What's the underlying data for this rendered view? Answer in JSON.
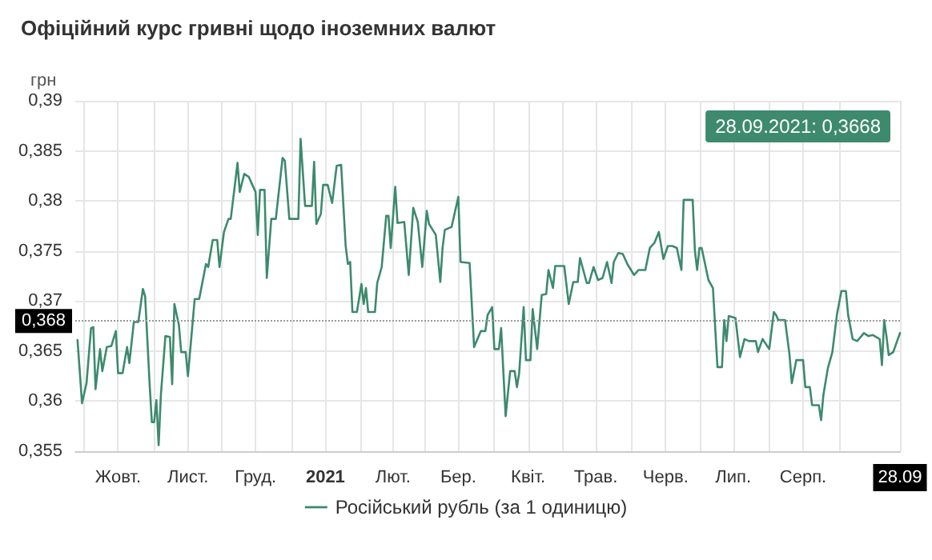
{
  "chart_data": {
    "type": "line",
    "title": "Офіційний курс гривні щодо іноземних валют",
    "ylabel": "грн",
    "x": [
      "2020-09-28",
      "2020-09-30",
      "2020-10-02",
      "2020-10-04",
      "2020-10-05",
      "2020-10-06",
      "2020-10-08",
      "2020-10-09",
      "2020-10-11",
      "2020-10-13",
      "2020-10-15",
      "2020-10-16",
      "2020-10-18",
      "2020-10-20",
      "2020-10-21",
      "2020-10-23",
      "2020-10-25",
      "2020-10-27",
      "2020-10-28",
      "2020-10-30",
      "2020-10-31",
      "2020-11-01",
      "2020-11-02",
      "2020-11-03",
      "2020-11-04",
      "2020-11-06",
      "2020-11-08",
      "2020-11-09",
      "2020-11-10",
      "2020-11-12",
      "2020-11-13",
      "2020-11-15",
      "2020-11-16",
      "2020-11-19",
      "2020-11-21",
      "2020-11-24",
      "2020-11-25",
      "2020-11-27",
      "2020-11-29",
      "2020-11-30",
      "2020-12-02",
      "2020-12-04",
      "2020-12-05",
      "2020-12-07",
      "2020-12-08",
      "2020-12-09",
      "2020-12-11",
      "2020-12-13",
      "2020-12-16",
      "2020-12-17",
      "2020-12-18",
      "2020-12-20",
      "2020-12-21",
      "2020-12-23",
      "2020-12-25",
      "2020-12-28",
      "2020-12-29",
      "2020-12-31",
      "2021-01-04",
      "2021-01-05",
      "2021-01-07",
      "2021-01-10",
      "2021-01-11",
      "2021-01-12",
      "2021-01-14",
      "2021-01-15",
      "2021-01-17",
      "2021-01-19",
      "2021-01-21",
      "2021-01-23",
      "2021-01-25",
      "2021-01-26",
      "2021-01-27",
      "2021-01-28",
      "2021-01-30",
      "2021-02-01",
      "2021-02-02",
      "2021-02-03",
      "2021-02-04",
      "2021-02-07",
      "2021-02-08",
      "2021-02-10",
      "2021-02-12",
      "2021-02-13",
      "2021-02-14",
      "2021-02-16",
      "2021-02-17",
      "2021-02-20",
      "2021-02-22",
      "2021-02-24",
      "2021-02-26",
      "2021-02-28",
      "2021-03-02",
      "2021-03-03",
      "2021-03-06",
      "2021-03-08",
      "2021-03-09",
      "2021-03-10",
      "2021-03-13",
      "2021-03-16",
      "2021-03-17",
      "2021-03-21",
      "2021-03-23",
      "2021-03-26",
      "2021-03-28",
      "2021-03-29",
      "2021-03-31",
      "2021-04-01",
      "2021-04-03",
      "2021-04-04",
      "2021-04-06",
      "2021-04-08",
      "2021-04-10",
      "2021-04-11",
      "2021-04-12",
      "2021-04-14",
      "2021-04-15",
      "2021-04-17",
      "2021-04-18",
      "2021-04-20",
      "2021-04-22",
      "2021-04-24",
      "2021-04-25",
      "2021-04-27",
      "2021-04-28",
      "2021-05-02",
      "2021-05-04",
      "2021-05-06",
      "2021-05-08",
      "2021-05-09",
      "2021-05-12",
      "2021-05-13",
      "2021-05-15",
      "2021-05-17",
      "2021-05-19",
      "2021-05-21",
      "2021-05-23",
      "2021-05-24",
      "2021-05-26",
      "2021-05-28",
      "2021-05-30",
      "2021-06-02",
      "2021-06-04",
      "2021-06-07",
      "2021-06-09",
      "2021-06-11",
      "2021-06-13",
      "2021-06-15",
      "2021-06-17",
      "2021-06-19",
      "2021-06-21",
      "2021-06-23",
      "2021-06-24",
      "2021-06-28",
      "2021-06-29",
      "2021-06-30",
      "2021-07-01",
      "2021-07-02",
      "2021-07-05",
      "2021-07-07",
      "2021-07-09",
      "2021-07-11",
      "2021-07-12",
      "2021-07-13",
      "2021-07-14",
      "2021-07-17",
      "2021-07-19",
      "2021-07-21",
      "2021-07-23",
      "2021-07-26",
      "2021-07-27",
      "2021-07-29",
      "2021-08-01",
      "2021-08-03",
      "2021-08-04",
      "2021-08-05",
      "2021-08-08",
      "2021-08-10",
      "2021-08-11",
      "2021-08-13",
      "2021-08-16",
      "2021-08-17",
      "2021-08-19",
      "2021-08-20",
      "2021-08-23",
      "2021-08-24",
      "2021-08-25",
      "2021-08-27",
      "2021-08-29",
      "2021-08-31",
      "2021-09-02",
      "2021-09-04",
      "2021-09-05",
      "2021-09-07",
      "2021-09-09",
      "2021-09-12",
      "2021-09-14",
      "2021-09-16",
      "2021-09-19",
      "2021-09-20",
      "2021-09-21",
      "2021-09-22",
      "2021-09-23",
      "2021-09-25",
      "2021-09-28"
    ],
    "series": [
      {
        "name": "Російський рубль (за 1 одиницю)",
        "color": "#3d8a6e",
        "values": [
          0.3661,
          0.3598,
          0.3618,
          0.3673,
          0.3674,
          0.3612,
          0.3652,
          0.363,
          0.3654,
          0.3655,
          0.367,
          0.3628,
          0.3628,
          0.3654,
          0.3638,
          0.3679,
          0.3679,
          0.3712,
          0.3705,
          0.3617,
          0.3579,
          0.3579,
          0.3601,
          0.3556,
          0.3606,
          0.3665,
          0.3664,
          0.3617,
          0.3697,
          0.3676,
          0.3649,
          0.3649,
          0.3625,
          0.3702,
          0.3702,
          0.3737,
          0.3734,
          0.3761,
          0.3761,
          0.3734,
          0.3769,
          0.3782,
          0.3782,
          0.3819,
          0.3838,
          0.3809,
          0.3827,
          0.3824,
          0.3809,
          0.3766,
          0.3811,
          0.3811,
          0.3723,
          0.3782,
          0.3782,
          0.3843,
          0.384,
          0.3782,
          0.3782,
          0.3862,
          0.3795,
          0.3795,
          0.3839,
          0.3777,
          0.3787,
          0.3816,
          0.3816,
          0.3798,
          0.3835,
          0.3836,
          0.3755,
          0.3737,
          0.3739,
          0.3689,
          0.3689,
          0.3717,
          0.3697,
          0.3713,
          0.3689,
          0.3689,
          0.3718,
          0.3734,
          0.3785,
          0.3785,
          0.3753,
          0.3814,
          0.3778,
          0.3779,
          0.3726,
          0.3793,
          0.3779,
          0.3734,
          0.379,
          0.3777,
          0.3766,
          0.3719,
          0.3753,
          0.3771,
          0.3774,
          0.3804,
          0.3739,
          0.3738,
          0.3654,
          0.367,
          0.367,
          0.3686,
          0.3694,
          0.3652,
          0.3652,
          0.3673,
          0.3585,
          0.363,
          0.363,
          0.3614,
          0.3628,
          0.3694,
          0.3641,
          0.3641,
          0.3692,
          0.3652,
          0.3706,
          0.3707,
          0.3731,
          0.3713,
          0.3735,
          0.3735,
          0.3697,
          0.3719,
          0.3719,
          0.3743,
          0.3718,
          0.3718,
          0.3734,
          0.3721,
          0.3723,
          0.3739,
          0.3718,
          0.3739,
          0.3748,
          0.3747,
          0.3737,
          0.3726,
          0.3731,
          0.3731,
          0.3753,
          0.3758,
          0.3769,
          0.3742,
          0.3755,
          0.3755,
          0.3753,
          0.3731,
          0.3801,
          0.3801,
          0.375,
          0.3731,
          0.3753,
          0.3753,
          0.3721,
          0.3713,
          0.3634,
          0.3634,
          0.3681,
          0.366,
          0.3685,
          0.3683,
          0.3644,
          0.3662,
          0.366,
          0.366,
          0.3649,
          0.3662,
          0.3652,
          0.3689,
          0.3686,
          0.3681,
          0.3681,
          0.3646,
          0.3618,
          0.3641,
          0.3641,
          0.3614,
          0.3614,
          0.3596,
          0.3596,
          0.3581,
          0.3606,
          0.3633,
          0.3649,
          0.3686,
          0.371,
          0.371,
          0.3686,
          0.3662,
          0.366,
          0.3668,
          0.3665,
          0.3666,
          0.3662,
          0.3636,
          0.3681,
          0.3665,
          0.3646,
          0.3649,
          0.3668
        ]
      }
    ],
    "xlim": [
      "2020-09-27",
      "2021-09-28"
    ],
    "xticks": [
      {
        "value": "2020-10-01",
        "label": null
      },
      {
        "value": "2020-10-16",
        "label": "Жовт."
      },
      {
        "value": "2020-11-01",
        "label": null
      },
      {
        "value": "2020-11-16",
        "label": "Лист."
      },
      {
        "value": "2020-12-01",
        "label": null
      },
      {
        "value": "2020-12-16",
        "label": "Груд."
      },
      {
        "value": "2021-01-01",
        "label": null
      },
      {
        "value": "2021-01-16",
        "label": "2021"
      },
      {
        "value": "2021-02-01",
        "label": null
      },
      {
        "value": "2021-02-15",
        "label": "Лют."
      },
      {
        "value": "2021-03-01",
        "label": null
      },
      {
        "value": "2021-03-16",
        "label": "Бер."
      },
      {
        "value": "2021-04-01",
        "label": null
      },
      {
        "value": "2021-04-16",
        "label": "Квіт."
      },
      {
        "value": "2021-05-01",
        "label": null
      },
      {
        "value": "2021-05-16",
        "label": "Трав."
      },
      {
        "value": "2021-06-01",
        "label": null
      },
      {
        "value": "2021-06-16",
        "label": "Черв."
      },
      {
        "value": "2021-07-01",
        "label": null
      },
      {
        "value": "2021-07-16",
        "label": "Лип."
      },
      {
        "value": "2021-08-01",
        "label": null
      },
      {
        "value": "2021-08-16",
        "label": "Серп."
      },
      {
        "value": "2021-09-01",
        "label": null
      },
      {
        "value": "2021-09-28",
        "label": "28.09"
      }
    ],
    "ylim": [
      0.355,
      0.39
    ],
    "yticks": [
      {
        "value": 0.355,
        "label": "0,355"
      },
      {
        "value": 0.36,
        "label": "0,36"
      },
      {
        "value": 0.365,
        "label": "0,365"
      },
      {
        "value": 0.37,
        "label": "0,37"
      },
      {
        "value": 0.375,
        "label": "0,375"
      },
      {
        "value": 0.38,
        "label": "0,38"
      },
      {
        "value": 0.385,
        "label": "0,385"
      },
      {
        "value": 0.39,
        "label": "0,39"
      }
    ],
    "ref_lines": [
      {
        "axis": "y",
        "value": 0.368,
        "label": "0,368",
        "line_style": "dotted"
      }
    ],
    "annotations": [
      "28.09.2021: 0,3668"
    ],
    "grid": true,
    "legend": "bottom",
    "marker": "none",
    "line_style": "solid"
  }
}
